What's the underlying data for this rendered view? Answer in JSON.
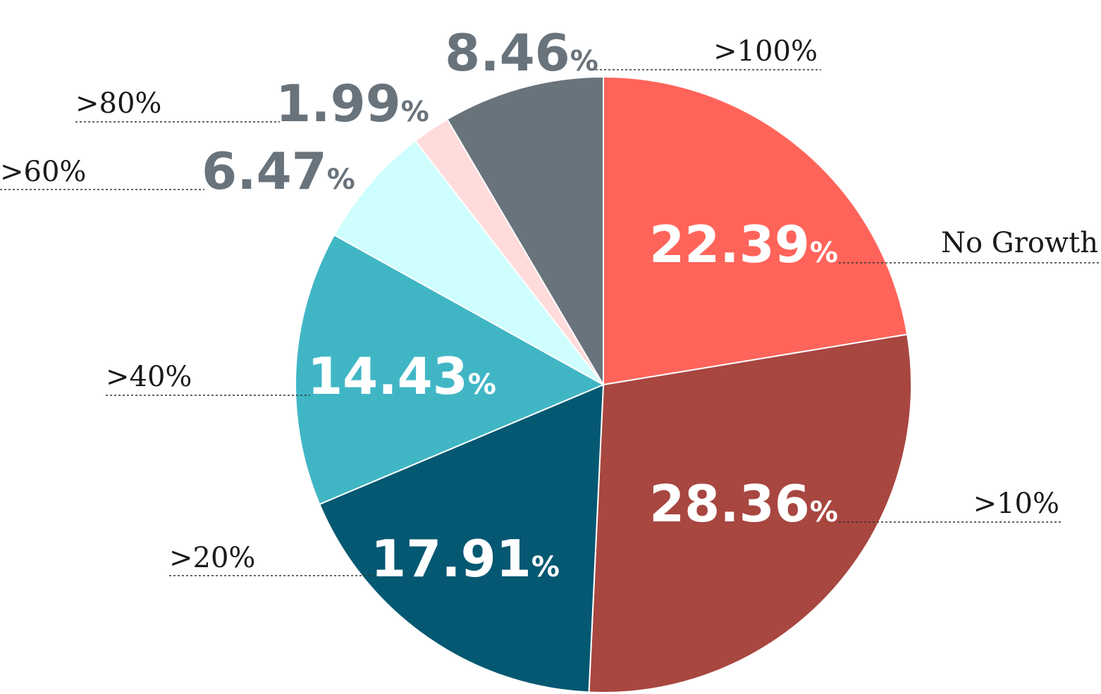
{
  "chart_data": {
    "type": "pie",
    "start_angle_deg": 0,
    "direction": "clockwise",
    "slices": [
      {
        "label": "No Growth",
        "value": 22.39,
        "value_text": "22.39",
        "unit": "%",
        "color": "#ff645a",
        "value_color": "#ffffff",
        "label_position": "inside"
      },
      {
        "label": ">10%",
        "value": 28.36,
        "value_text": "28.36",
        "unit": "%",
        "color": "#a84640",
        "value_color": "#ffffff",
        "label_position": "inside"
      },
      {
        "label": ">20%",
        "value": 17.91,
        "value_text": "17.91",
        "unit": "%",
        "color": "#055872",
        "value_color": "#ffffff",
        "label_position": "inside"
      },
      {
        "label": ">40%",
        "value": 14.43,
        "value_text": "14.43",
        "unit": "%",
        "color": "#40b6c5",
        "value_color": "#ffffff",
        "label_position": "inside"
      },
      {
        "label": ">60%",
        "value": 6.47,
        "value_text": "6.47",
        "unit": "%",
        "color": "#cffefe",
        "value_color": "#69737c",
        "label_position": "outside"
      },
      {
        "label": ">80%",
        "value": 1.99,
        "value_text": "1.99",
        "unit": "%",
        "color": "#ffdbdb",
        "value_color": "#69737c",
        "label_position": "outside"
      },
      {
        "label": ">100%",
        "value": 8.46,
        "value_text": "8.46",
        "unit": "%",
        "color": "#69737c",
        "value_color": "#69737c",
        "label_position": "outside"
      }
    ]
  }
}
